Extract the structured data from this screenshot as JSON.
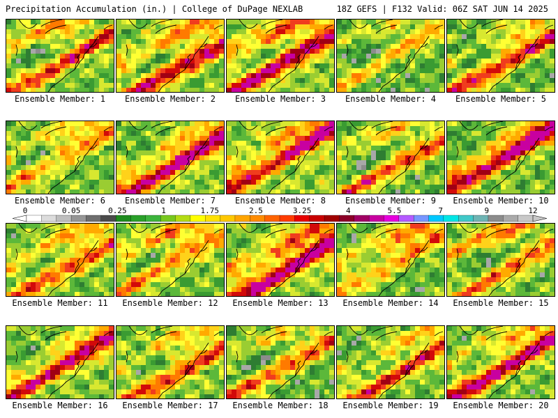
{
  "header": {
    "left": "Precipitation Accumulation (in.) | College of DuPage NEXLAB",
    "right": "18Z GEFS | F132 Valid: 06Z SAT JUN 14 2025"
  },
  "panel_label_prefix": "Ensemble Member: ",
  "members": [
    {
      "label": "Ensemble Member: 1",
      "intensity": 0.8,
      "seed": 1
    },
    {
      "label": "Ensemble Member: 2",
      "intensity": 0.9,
      "seed": 2
    },
    {
      "label": "Ensemble Member: 3",
      "intensity": 0.95,
      "seed": 3
    },
    {
      "label": "Ensemble Member: 4",
      "intensity": 0.55,
      "seed": 4
    },
    {
      "label": "Ensemble Member: 5",
      "intensity": 0.85,
      "seed": 5
    },
    {
      "label": "Ensemble Member: 6",
      "intensity": 0.55,
      "seed": 6
    },
    {
      "label": "Ensemble Member: 7",
      "intensity": 0.95,
      "seed": 7
    },
    {
      "label": "Ensemble Member: 8",
      "intensity": 0.85,
      "seed": 8
    },
    {
      "label": "Ensemble Member: 9",
      "intensity": 0.75,
      "seed": 9
    },
    {
      "label": "Ensemble Member: 10",
      "intensity": 0.9,
      "seed": 10
    },
    {
      "label": "Ensemble Member: 11",
      "intensity": 0.7,
      "seed": 11
    },
    {
      "label": "Ensemble Member: 12",
      "intensity": 0.55,
      "seed": 12
    },
    {
      "label": "Ensemble Member: 13",
      "intensity": 1.0,
      "seed": 13
    },
    {
      "label": "Ensemble Member: 14",
      "intensity": 0.55,
      "seed": 14
    },
    {
      "label": "Ensemble Member: 15",
      "intensity": 0.65,
      "seed": 15
    },
    {
      "label": "Ensemble Member: 16",
      "intensity": 0.85,
      "seed": 16
    },
    {
      "label": "Ensemble Member: 17",
      "intensity": 0.7,
      "seed": 17
    },
    {
      "label": "Ensemble Member: 18",
      "intensity": 0.75,
      "seed": 18
    },
    {
      "label": "Ensemble Member: 19",
      "intensity": 0.8,
      "seed": 19
    },
    {
      "label": "Ensemble Member: 20",
      "intensity": 1.0,
      "seed": 20
    }
  ],
  "colorbar": {
    "tick_labels": [
      "0",
      "0.05",
      "0.25",
      "1",
      "1.75",
      "2.5",
      "3.25",
      "4",
      "5.5",
      "7",
      "9",
      "12"
    ],
    "colors": [
      "#ffffff",
      "#dcdcdc",
      "#bebebe",
      "#969696",
      "#6e6e6e",
      "#4b4b4b",
      "#1e8c1e",
      "#2aa02a",
      "#3cb43c",
      "#78c81e",
      "#b4dc14",
      "#ffff00",
      "#ffe100",
      "#ffc800",
      "#ffa500",
      "#ff8c00",
      "#ff6400",
      "#ff3c00",
      "#e60000",
      "#c80000",
      "#a00000",
      "#8c0028",
      "#a00064",
      "#c800a0",
      "#e600dc",
      "#b45aff",
      "#7896ff",
      "#00c8ff",
      "#00e6e6",
      "#40c8c8",
      "#6eb4b4",
      "#8c8c8c",
      "#aaaaaa",
      "#c8c8c8"
    ]
  }
}
